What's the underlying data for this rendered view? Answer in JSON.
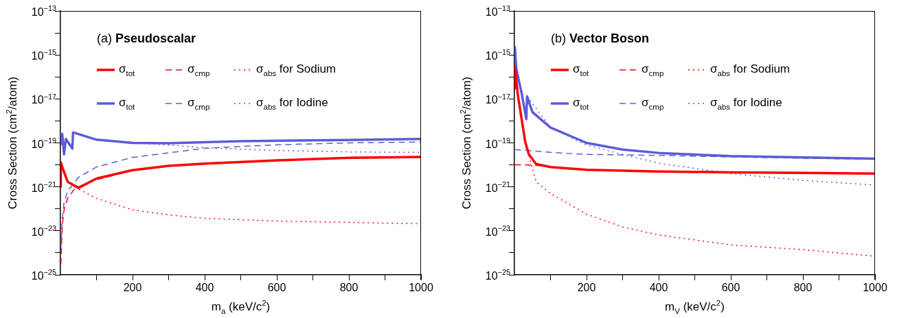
{
  "chart_data": [
    {
      "type": "line",
      "title": "(a) Pseudoscalar",
      "xlabel": "m$_{a}$ (keV/c$^{2}$)",
      "ylabel": "Cross Section (cm$^{2}$/atom)",
      "log": "y",
      "legend": "top",
      "marker": "none",
      "xlim": [
        0,
        1000
      ],
      "ylim": [
        1e-25,
        1e-13
      ],
      "xticks": [
        {
          "value": 100,
          "label": null
        },
        200,
        {
          "value": 300,
          "label": null
        },
        400,
        {
          "value": 500,
          "label": null
        },
        600,
        {
          "value": 700,
          "label": null
        },
        800,
        {
          "value": 900,
          "label": null
        },
        1000
      ],
      "yticks": [
        {
          "value": 1e-25,
          "label": "10$^{−25}$"
        },
        {
          "value": 1e-24,
          "label": null
        },
        {
          "value": 1e-23,
          "label": "10$^{−23}$"
        },
        {
          "value": 1e-22,
          "label": null
        },
        {
          "value": 1e-21,
          "label": "10$^{−21}$"
        },
        {
          "value": 1e-20,
          "label": null
        },
        {
          "value": 1e-19,
          "label": "10$^{−19}$"
        },
        {
          "value": 1e-18,
          "label": null
        },
        {
          "value": 1e-17,
          "label": "10$^{−17}$"
        },
        {
          "value": 1e-16,
          "label": null
        },
        {
          "value": 1e-15,
          "label": "10$^{−15}$"
        },
        {
          "value": 1e-14,
          "label": null
        },
        {
          "value": 1e-13,
          "label": "10$^{−13}$"
        }
      ],
      "series": [
        {
          "name": "σ$_{tot}$",
          "color": "#ff0000",
          "line_style": "solid",
          "x": [
            0.5,
            1,
            5,
            20,
            50,
            100,
            200,
            300,
            400,
            600,
            800,
            1000
          ],
          "values": [
            1e-21,
            1.3e-20,
            8e-21,
            1.7e-21,
            9e-22,
            2.4e-21,
            5.8e-21,
            9e-21,
            1.15e-20,
            1.6e-20,
            2.1e-20,
            2.3e-20
          ]
        },
        {
          "name": "σ$_{cmp}$",
          "color": "#ff0000",
          "line_style": "dashed",
          "x": [
            1,
            5,
            10,
            20,
            40,
            80,
            100,
            200,
            300,
            400,
            600,
            800,
            1000
          ],
          "values": [
            3e-25,
            1.6e-23,
            9e-23,
            3e-22,
            8.5e-22,
            1.6e-21,
            2.1e-21,
            5.6e-21,
            8.8e-21,
            1.1e-20,
            1.6e-20,
            2e-20,
            2.2e-20
          ]
        },
        {
          "name": "σ$_{abs}$ for Sodium",
          "color": "#ff0000",
          "line_style": "dotted",
          "x": [
            40,
            50,
            100,
            200,
            300,
            400,
            600,
            1000
          ],
          "values": [
            1e-21,
            8e-22,
            3e-22,
            9e-23,
            5.3e-23,
            3.7e-23,
            2.8e-23,
            2.1e-23
          ]
        },
        {
          "name": "σ$_{tot}$",
          "color": "#5b5bd6",
          "line_style": "solid",
          "x": [
            1,
            5,
            10,
            15,
            33,
            35,
            100,
            200,
            300,
            500,
            700,
            1000
          ],
          "values": [
            8e-20,
            2.6e-19,
            3e-20,
            1.5e-19,
            5.5e-20,
            3e-19,
            1.4e-19,
            1e-19,
            9.6e-20,
            1.2e-19,
            1.3e-19,
            1.5e-19
          ]
        },
        {
          "name": "σ$_{cmp}$",
          "color": "#5b5bd6",
          "line_style": "dashed",
          "x": [
            1,
            5,
            10,
            20,
            50,
            100,
            200,
            400,
            600,
            800,
            1000
          ],
          "values": [
            1.4e-24,
            3.7e-23,
            1.9e-22,
            6.5e-22,
            2.7e-21,
            8e-21,
            2.2e-20,
            5.7e-20,
            8.2e-20,
            1e-19,
            1.1e-19
          ]
        },
        {
          "name": "σ$_{abs}$ for Iodine",
          "color": "#5b5bd6",
          "line_style": "dotted",
          "x": [
            35,
            100,
            200,
            300,
            400,
            600,
            800,
            1000
          ],
          "values": [
            3e-19,
            1.4e-19,
            1e-19,
            8e-20,
            6e-20,
            4.5e-20,
            3.9e-20,
            3.7e-20
          ]
        }
      ]
    },
    {
      "type": "line",
      "title": "(b) Vector Boson",
      "xlabel": "m$_{V}$ (keV/c$^{2}$)",
      "ylabel": "Cross Section (cm$^{2}$/atom)",
      "log": "y",
      "legend": "top",
      "marker": "none",
      "xlim": [
        0,
        1000
      ],
      "ylim": [
        1e-25,
        1e-13
      ],
      "xticks": [
        {
          "value": 100,
          "label": null
        },
        200,
        {
          "value": 300,
          "label": null
        },
        400,
        {
          "value": 500,
          "label": null
        },
        600,
        {
          "value": 700,
          "label": null
        },
        800,
        {
          "value": 900,
          "label": null
        },
        1000
      ],
      "yticks": [
        {
          "value": 1e-25,
          "label": "10$^{−25}$"
        },
        {
          "value": 1e-24,
          "label": null
        },
        {
          "value": 1e-23,
          "label": "10$^{−23}$"
        },
        {
          "value": 1e-22,
          "label": null
        },
        {
          "value": 1e-21,
          "label": "10$^{−21}$"
        },
        {
          "value": 1e-20,
          "label": null
        },
        {
          "value": 1e-19,
          "label": "10$^{−19}$"
        },
        {
          "value": 1e-18,
          "label": null
        },
        {
          "value": 1e-17,
          "label": "10$^{−17}$"
        },
        {
          "value": 1e-16,
          "label": null
        },
        {
          "value": 1e-15,
          "label": "10$^{−15}$"
        },
        {
          "value": 1e-14,
          "label": null
        },
        {
          "value": 1e-13,
          "label": "10$^{−13}$"
        }
      ],
      "series": [
        {
          "name": "σ$_{tot}$",
          "color": "#ff0000",
          "line_style": "solid",
          "x": [
            0.5,
            1,
            10,
            20,
            30,
            40,
            60,
            100,
            200,
            400,
            600,
            800,
            1000
          ],
          "values": [
            3e-17,
            3e-16,
            1.3e-17,
            1.2e-18,
            1.1e-19,
            3e-20,
            1.1e-20,
            8e-21,
            6e-21,
            5e-21,
            4.6e-21,
            4.3e-21,
            4e-21
          ]
        },
        {
          "name": "σ$_{cmp}$",
          "color": "#ff0000",
          "line_style": "dashed",
          "x": [
            1,
            30,
            60,
            100,
            200,
            400,
            600,
            800,
            1000
          ],
          "values": [
            1e-20,
            1e-20,
            9.5e-21,
            7.8e-21,
            5.9e-21,
            4.9e-21,
            4.5e-21,
            4.2e-21,
            3.9e-21
          ]
        },
        {
          "name": "σ$_{abs}$ for Sodium",
          "color": "#ff0000",
          "line_style": "dotted",
          "x": [
            30,
            60,
            100,
            200,
            300,
            400,
            600,
            800,
            1000
          ],
          "values": [
            1.1e-19,
            1.7e-21,
            5e-22,
            5.7e-23,
            1.5e-23,
            6.5e-24,
            2.3e-24,
            1.4e-24,
            7e-25
          ]
        },
        {
          "name": "σ$_{tot}$",
          "color": "#5b5bd6",
          "line_style": "solid",
          "x": [
            1,
            5,
            10,
            20,
            33,
            35,
            50,
            100,
            200,
            300,
            400,
            600,
            1000
          ],
          "values": [
            2.5e-15,
            2.5e-16,
            1e-16,
            1.8e-17,
            1.2e-18,
            1.3e-17,
            2.5e-18,
            5e-19,
            1e-19,
            5e-20,
            3.5e-20,
            2.5e-20,
            1.9e-20
          ]
        },
        {
          "name": "σ$_{cmp}$",
          "color": "#5b5bd6",
          "line_style": "dashed",
          "x": [
            1,
            100,
            200,
            400,
            600,
            800,
            1000
          ],
          "values": [
            5e-20,
            3.7e-20,
            3e-20,
            2.7e-20,
            2.3e-20,
            2e-20,
            1.8e-20
          ]
        },
        {
          "name": "σ$_{abs}$ for Iodine",
          "color": "#5b5bd6",
          "line_style": "dotted",
          "x": [
            35,
            100,
            200,
            300,
            400,
            600,
            800,
            1000
          ],
          "values": [
            1.3e-17,
            5e-19,
            8e-20,
            3e-20,
            1.2e-20,
            4e-21,
            2e-21,
            1.2e-21
          ]
        }
      ]
    }
  ]
}
